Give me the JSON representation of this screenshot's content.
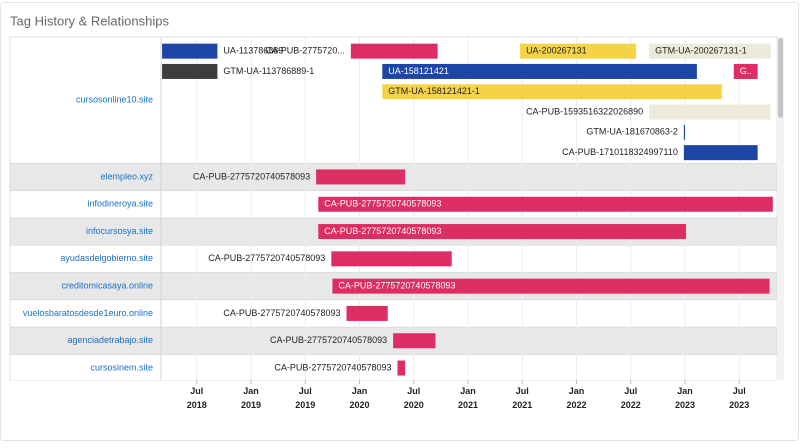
{
  "chart_data": {
    "type": "gantt",
    "title": "Tag History & Relationships",
    "xlim": [
      2018.17,
      2023.83
    ],
    "xticks": [
      {
        "value": 2018.5,
        "label": "Jul 2018"
      },
      {
        "value": 2019.0,
        "label": "Jan 2019"
      },
      {
        "value": 2019.5,
        "label": "Jul 2019"
      },
      {
        "value": 2020.0,
        "label": "Jan 2020"
      },
      {
        "value": 2020.5,
        "label": "Jul 2020"
      },
      {
        "value": 2021.0,
        "label": "Jan 2021"
      },
      {
        "value": 2021.5,
        "label": "Jul 2021"
      },
      {
        "value": 2022.0,
        "label": "Jan 2022"
      },
      {
        "value": 2022.5,
        "label": "Jul 2022"
      },
      {
        "value": 2023.0,
        "label": "Jan 2023"
      },
      {
        "value": 2023.5,
        "label": "Jul 2023"
      }
    ],
    "grid": true,
    "rows": [
      {
        "name": "cursosonline10.site",
        "lanes": [
          [
            {
              "label": "UA-113786889",
              "start": 2018.18,
              "end": 2018.69,
              "color": "#1c45a6"
            },
            {
              "label": "CA-PUB-2775720...",
              "start": 2019.92,
              "end": 2020.72,
              "color": "#dc2e64"
            },
            {
              "label": "UA-200267131",
              "start": 2021.48,
              "end": 2022.55,
              "color": "#f5d348"
            },
            {
              "label": "GTM-UA-200267131-1",
              "start": 2022.67,
              "end": 2023.79,
              "color": "#ecead9"
            }
          ],
          [
            {
              "label": "GTM-UA-113786889-1",
              "start": 2018.18,
              "end": 2018.69,
              "color": "#3d3d3d"
            },
            {
              "label": "UA-158121421",
              "start": 2020.21,
              "end": 2023.11,
              "color": "#1c45a6"
            },
            {
              "label": "G..",
              "start": 2023.45,
              "end": 2023.67,
              "color": "#dc2e64"
            }
          ],
          [
            {
              "label": "GTM-UA-158121421-1",
              "start": 2020.21,
              "end": 2023.34,
              "color": "#f5d348"
            }
          ],
          [
            {
              "label": "CA-PUB-1593516322026890",
              "start": 2022.67,
              "end": 2023.79,
              "color": "#ecead9"
            }
          ],
          [
            {
              "label": "GTM-UA-181670863-2",
              "start": 2022.99,
              "end": 2023.0,
              "color": "#1c45a6"
            }
          ],
          [
            {
              "label": "CA-PUB-1710118324997110",
              "start": 2022.99,
              "end": 2023.67,
              "color": "#1c45a6"
            }
          ]
        ]
      },
      {
        "name": "elempleo.xyz",
        "lanes": [
          [
            {
              "label": "CA-PUB-2775720740578093",
              "start": 2019.6,
              "end": 2020.42,
              "color": "#dc2e64"
            }
          ]
        ]
      },
      {
        "name": "infodineroya.site",
        "lanes": [
          [
            {
              "label": "CA-PUB-2775720740578093",
              "start": 2019.62,
              "end": 2023.81,
              "color": "#dc2e64"
            }
          ]
        ]
      },
      {
        "name": "infocursosya.site",
        "lanes": [
          [
            {
              "label": "CA-PUB-2775720740578093",
              "start": 2019.62,
              "end": 2023.01,
              "color": "#dc2e64"
            }
          ]
        ]
      },
      {
        "name": "ayudasdelgobierno.site",
        "lanes": [
          [
            {
              "label": "CA-PUB-2775720740578093",
              "start": 2019.74,
              "end": 2020.85,
              "color": "#dc2e64"
            }
          ]
        ]
      },
      {
        "name": "creditomicasaya.online",
        "lanes": [
          [
            {
              "label": "CA-PUB-2775720740578093",
              "start": 2019.75,
              "end": 2023.78,
              "color": "#dc2e64"
            }
          ]
        ]
      },
      {
        "name": "vuelosbaratosdesde1euro.online",
        "lanes": [
          [
            {
              "label": "CA-PUB-2775720740578093",
              "start": 2019.88,
              "end": 2020.26,
              "color": "#dc2e64"
            }
          ]
        ]
      },
      {
        "name": "agenciadetrabajo.site",
        "lanes": [
          [
            {
              "label": "CA-PUB-2775720740578093",
              "start": 2020.31,
              "end": 2020.7,
              "color": "#dc2e64"
            }
          ]
        ]
      },
      {
        "name": "cursosinem.site",
        "lanes": [
          [
            {
              "label": "CA-PUB-2775720740578093",
              "start": 2020.35,
              "end": 2020.42,
              "color": "#dc2e64"
            }
          ]
        ]
      }
    ]
  }
}
